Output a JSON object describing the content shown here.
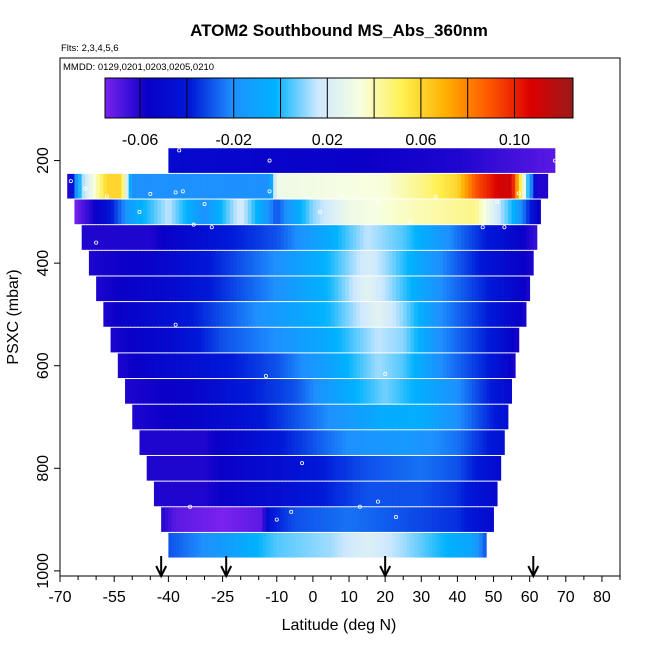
{
  "chart_data": {
    "type": "heatmap",
    "title": "ATOM2 Southbound MS_Abs_360nm",
    "flights_note": "Flts: 2,3,4,5,6",
    "dates_note": "MMDD: 0129,0201,0203,0205,0210",
    "xlabel": "Latitude (deg N)",
    "ylabel": "PSXC (mbar)",
    "xlim": [
      -70,
      85
    ],
    "ylim_reversed": [
      1010,
      0
    ],
    "x_tick_labels": [
      "-70",
      "-55",
      "-40",
      "-25",
      "-10",
      "0",
      "10",
      "20",
      "30",
      "40",
      "50",
      "60",
      "70",
      "80"
    ],
    "x_tick_values": [
      -70,
      -55,
      -40,
      -25,
      -10,
      0,
      10,
      20,
      30,
      40,
      50,
      60,
      70,
      80
    ],
    "x_minor_ticks": [
      -65,
      -60,
      -50,
      -45,
      -35,
      -30,
      -20,
      -15,
      -5,
      5,
      15,
      25,
      35,
      45,
      55,
      65,
      75,
      85
    ],
    "y_tick_labels": [
      "200",
      "400",
      "600",
      "800",
      "1000"
    ],
    "y_tick_values": [
      200,
      400,
      600,
      800,
      1000
    ],
    "colorbar": {
      "min": -0.075,
      "max": 0.125,
      "tick_labels": [
        "-0.06",
        "-0.02",
        "0.02",
        "0.06",
        "0.10"
      ],
      "tick_values": [
        -0.06,
        -0.02,
        0.02,
        0.06,
        0.1
      ],
      "breaks": [
        -0.06,
        -0.04,
        -0.02,
        0,
        0.02,
        0.04,
        0.06,
        0.08,
        0.1
      ],
      "colors": [
        "#7a22ee",
        "#0a00c8",
        "#0018d8",
        "#1e90ff",
        "#00b2ff",
        "#cde8ff",
        "#f8ffe0",
        "#fff050",
        "#ffb000",
        "#ff5a00",
        "#dd0000",
        "#9a1a1a"
      ]
    },
    "arrows_at_latitude": [
      -42,
      -24,
      20,
      61
    ],
    "pressure_bins": [
      {
        "p": 200,
        "lat_min": -40,
        "lat_max": 67,
        "profile": [
          [
            -40,
            -0.05
          ],
          [
            0,
            -0.055
          ],
          [
            40,
            -0.06
          ],
          [
            67,
            -0.07
          ]
        ]
      },
      {
        "p": 250,
        "lat_min": -68,
        "lat_max": 65,
        "profile": [
          [
            -68,
            -0.07
          ],
          [
            -64,
            0.01
          ],
          [
            -57,
            0.06
          ],
          [
            -53,
            0.06
          ],
          [
            -50,
            -0.02
          ],
          [
            -12,
            -0.02
          ],
          [
            -10,
            0.03
          ],
          [
            20,
            0.035
          ],
          [
            30,
            0.045
          ],
          [
            40,
            0.06
          ],
          [
            45,
            0.09
          ],
          [
            52,
            0.11
          ],
          [
            55,
            0.11
          ],
          [
            58,
            0.04
          ],
          [
            62,
            -0.06
          ]
        ]
      },
      {
        "p": 300,
        "lat_min": -66,
        "lat_max": 63,
        "profile": [
          [
            -66,
            -0.075
          ],
          [
            -58,
            -0.05
          ],
          [
            -50,
            -0.01
          ],
          [
            -40,
            0.015
          ],
          [
            -30,
            -0.02
          ],
          [
            -20,
            0.02
          ],
          [
            -10,
            -0.03
          ],
          [
            0,
            0.01
          ],
          [
            10,
            0.03
          ],
          [
            30,
            0.04
          ],
          [
            45,
            0.045
          ],
          [
            55,
            0.0
          ],
          [
            63,
            -0.06
          ]
        ]
      },
      {
        "p": 350,
        "lat_min": -64,
        "lat_max": 62,
        "profile": [
          [
            -64,
            -0.06
          ],
          [
            -45,
            -0.06
          ],
          [
            -25,
            -0.04
          ],
          [
            -10,
            -0.03
          ],
          [
            5,
            -0.005
          ],
          [
            15,
            0.015
          ],
          [
            25,
            0.005
          ],
          [
            40,
            -0.025
          ],
          [
            55,
            -0.05
          ],
          [
            62,
            -0.065
          ]
        ]
      },
      {
        "p": 400,
        "lat_min": -62,
        "lat_max": 61,
        "profile": [
          [
            -62,
            -0.06
          ],
          [
            -45,
            -0.055
          ],
          [
            -25,
            -0.035
          ],
          [
            -10,
            -0.02
          ],
          [
            5,
            0.0
          ],
          [
            15,
            0.02
          ],
          [
            20,
            0.012
          ],
          [
            35,
            -0.02
          ],
          [
            50,
            -0.045
          ],
          [
            61,
            -0.06
          ]
        ]
      },
      {
        "p": 450,
        "lat_min": -60,
        "lat_max": 60,
        "profile": [
          [
            -60,
            -0.06
          ],
          [
            -40,
            -0.05
          ],
          [
            -25,
            -0.035
          ],
          [
            -10,
            -0.02
          ],
          [
            5,
            0.0
          ],
          [
            15,
            0.025
          ],
          [
            22,
            0.01
          ],
          [
            35,
            -0.02
          ],
          [
            50,
            -0.04
          ],
          [
            60,
            -0.06
          ]
        ]
      },
      {
        "p": 500,
        "lat_min": -58,
        "lat_max": 59,
        "profile": [
          [
            -58,
            -0.06
          ],
          [
            -40,
            -0.045
          ],
          [
            -25,
            -0.03
          ],
          [
            -10,
            -0.015
          ],
          [
            5,
            0.0
          ],
          [
            18,
            0.025
          ],
          [
            25,
            0.01
          ],
          [
            35,
            -0.02
          ],
          [
            50,
            -0.04
          ],
          [
            59,
            -0.06
          ]
        ]
      },
      {
        "p": 550,
        "lat_min": -56,
        "lat_max": 57,
        "profile": [
          [
            -56,
            -0.06
          ],
          [
            -40,
            -0.05
          ],
          [
            -25,
            -0.03
          ],
          [
            -10,
            -0.02
          ],
          [
            5,
            -0.005
          ],
          [
            18,
            0.015
          ],
          [
            25,
            0.01
          ],
          [
            35,
            -0.02
          ],
          [
            50,
            -0.04
          ],
          [
            57,
            -0.06
          ]
        ]
      },
      {
        "p": 600,
        "lat_min": -54,
        "lat_max": 56,
        "profile": [
          [
            -54,
            -0.06
          ],
          [
            -40,
            -0.05
          ],
          [
            -25,
            -0.04
          ],
          [
            -10,
            -0.03
          ],
          [
            5,
            -0.01
          ],
          [
            18,
            0.012
          ],
          [
            25,
            0.005
          ],
          [
            35,
            -0.02
          ],
          [
            50,
            -0.04
          ],
          [
            56,
            -0.06
          ]
        ]
      },
      {
        "p": 650,
        "lat_min": -52,
        "lat_max": 55,
        "profile": [
          [
            -52,
            -0.06
          ],
          [
            -35,
            -0.055
          ],
          [
            -20,
            -0.04
          ],
          [
            -5,
            -0.03
          ],
          [
            10,
            -0.005
          ],
          [
            20,
            0.008
          ],
          [
            30,
            -0.005
          ],
          [
            40,
            -0.02
          ],
          [
            55,
            -0.05
          ]
        ]
      },
      {
        "p": 700,
        "lat_min": -50,
        "lat_max": 54,
        "profile": [
          [
            -50,
            -0.06
          ],
          [
            -35,
            -0.055
          ],
          [
            -20,
            -0.045
          ],
          [
            -5,
            -0.03
          ],
          [
            10,
            -0.015
          ],
          [
            20,
            -0.005
          ],
          [
            30,
            -0.005
          ],
          [
            40,
            -0.02
          ],
          [
            54,
            -0.045
          ]
        ]
      },
      {
        "p": 750,
        "lat_min": -48,
        "lat_max": 53,
        "profile": [
          [
            -48,
            -0.06
          ],
          [
            -30,
            -0.06
          ],
          [
            -20,
            -0.05
          ],
          [
            -5,
            -0.035
          ],
          [
            10,
            -0.02
          ],
          [
            25,
            -0.015
          ],
          [
            40,
            -0.025
          ],
          [
            53,
            -0.045
          ]
        ]
      },
      {
        "p": 800,
        "lat_min": -46,
        "lat_max": 52,
        "profile": [
          [
            -46,
            -0.06
          ],
          [
            -30,
            -0.06
          ],
          [
            -15,
            -0.05
          ],
          [
            0,
            -0.04
          ],
          [
            15,
            -0.03
          ],
          [
            30,
            -0.025
          ],
          [
            40,
            -0.03
          ],
          [
            52,
            -0.05
          ]
        ]
      },
      {
        "p": 850,
        "lat_min": -44,
        "lat_max": 51,
        "profile": [
          [
            -44,
            -0.06
          ],
          [
            -30,
            -0.06
          ],
          [
            -15,
            -0.05
          ],
          [
            0,
            -0.04
          ],
          [
            15,
            -0.03
          ],
          [
            30,
            -0.03
          ],
          [
            40,
            -0.035
          ],
          [
            51,
            -0.05
          ]
        ]
      },
      {
        "p": 900,
        "lat_min": -42,
        "lat_max": 50,
        "profile": [
          [
            -42,
            -0.06
          ],
          [
            -38,
            -0.07
          ],
          [
            -25,
            -0.075
          ],
          [
            -14,
            -0.07
          ],
          [
            -12,
            -0.04
          ],
          [
            -5,
            -0.03
          ],
          [
            10,
            -0.025
          ],
          [
            25,
            -0.03
          ],
          [
            40,
            -0.035
          ],
          [
            50,
            -0.05
          ]
        ]
      },
      {
        "p": 950,
        "lat_min": -40,
        "lat_max": 48,
        "profile": [
          [
            -40,
            -0.03
          ],
          [
            -25,
            -0.015
          ],
          [
            -10,
            0.005
          ],
          [
            5,
            0.012
          ],
          [
            15,
            0.022
          ],
          [
            25,
            0.012
          ],
          [
            35,
            0.0
          ],
          [
            44,
            -0.01
          ],
          [
            48,
            -0.03
          ]
        ]
      }
    ],
    "sample_points": [
      [
        -37,
        180
      ],
      [
        -12,
        200
      ],
      [
        67,
        200
      ],
      [
        -67,
        240
      ],
      [
        -63,
        255
      ],
      [
        -57,
        270
      ],
      [
        -45,
        265
      ],
      [
        -38,
        262
      ],
      [
        -36,
        260
      ],
      [
        -30,
        285
      ],
      [
        -12,
        260
      ],
      [
        8,
        268
      ],
      [
        18,
        282
      ],
      [
        34,
        270
      ],
      [
        51,
        280
      ],
      [
        57,
        264
      ],
      [
        -48,
        300
      ],
      [
        -33,
        325
      ],
      [
        -28,
        330
      ],
      [
        2,
        300
      ],
      [
        27,
        320
      ],
      [
        47,
        330
      ],
      [
        53,
        330
      ],
      [
        -60,
        360
      ],
      [
        -38,
        520
      ],
      [
        -13,
        620
      ],
      [
        20,
        616
      ],
      [
        -3,
        790
      ],
      [
        56,
        770
      ],
      [
        -34,
        875
      ],
      [
        -6,
        885
      ],
      [
        13,
        875
      ],
      [
        18,
        865
      ],
      [
        23,
        895
      ],
      [
        -10,
        900
      ]
    ]
  }
}
